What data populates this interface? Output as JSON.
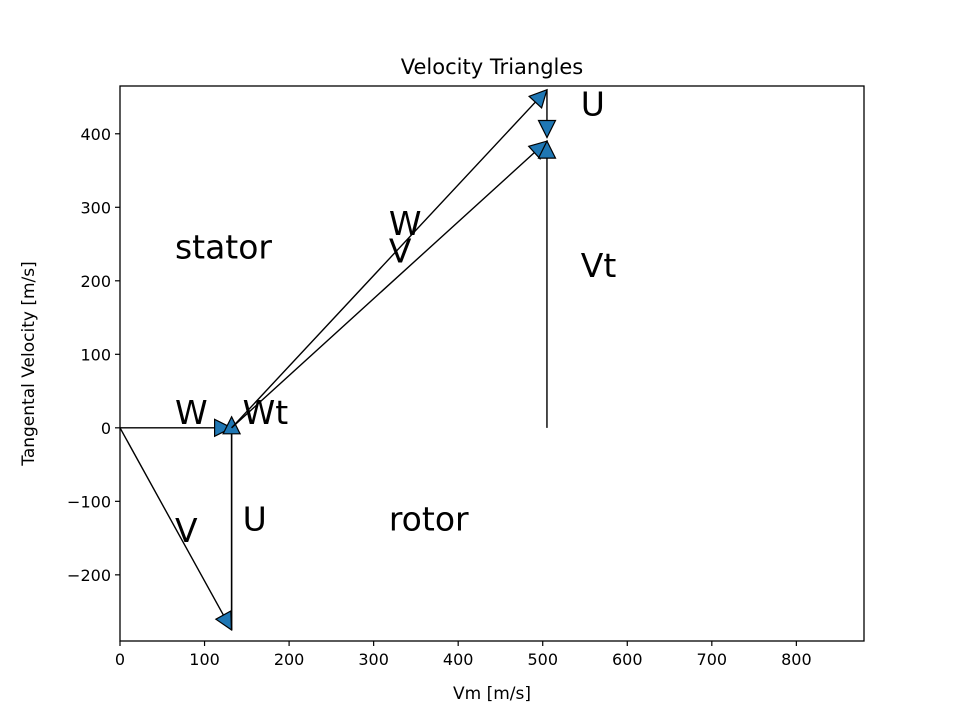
{
  "chart_data": {
    "type": "line",
    "title": "Velocity Triangles",
    "xlabel": "Vm [m/s]",
    "ylabel": "Tangental Velocity [m/s]",
    "xlim": [
      0,
      880
    ],
    "ylim": [
      -290,
      465
    ],
    "xticks": [
      0,
      100,
      200,
      300,
      400,
      500,
      600,
      700,
      800
    ],
    "xtick_labels": [
      "0",
      "100",
      "200",
      "300",
      "400",
      "500",
      "600",
      "700",
      "800"
    ],
    "yticks": [
      -200,
      -100,
      0,
      100,
      200,
      300,
      400
    ],
    "ytick_labels": [
      "−200",
      "−100",
      "0",
      "100",
      "200",
      "300",
      "400"
    ],
    "grid": false,
    "series": [
      {
        "name": "W",
        "x": [
          0,
          132
        ],
        "y": [
          0,
          0
        ],
        "arrow_head": true
      },
      {
        "name": "V",
        "x": [
          0,
          132
        ],
        "y": [
          0,
          -275
        ],
        "arrow_head": true
      },
      {
        "name": "U",
        "x": [
          132,
          132
        ],
        "y": [
          0,
          -275
        ],
        "arrow_head": false
      },
      {
        "name": "Wt",
        "x": [
          132,
          132
        ],
        "y": [
          -275,
          15
        ],
        "arrow_head": true
      },
      {
        "name": "W",
        "x": [
          132,
          505
        ],
        "y": [
          0,
          460
        ],
        "arrow_head": true
      },
      {
        "name": "V",
        "x": [
          132,
          505
        ],
        "y": [
          0,
          390
        ],
        "arrow_head": true
      },
      {
        "name": "U",
        "x": [
          505,
          505
        ],
        "y": [
          460,
          395
        ],
        "arrow_head": true
      },
      {
        "name": "Vt",
        "x": [
          505,
          505
        ],
        "y": [
          0,
          390
        ],
        "arrow_head": true
      }
    ],
    "annotations": [
      {
        "text": "stator",
        "x": 65,
        "y": 230
      },
      {
        "text": "W",
        "x": 65,
        "y": 5
      },
      {
        "text": "Wt",
        "x": 145,
        "y": 5
      },
      {
        "text": "V",
        "x": 65,
        "y": -155
      },
      {
        "text": "U",
        "x": 145,
        "y": -140
      },
      {
        "text": "rotor",
        "x": 318,
        "y": -140
      },
      {
        "text": "W",
        "x": 318,
        "y": 262
      },
      {
        "text": "V",
        "x": 318,
        "y": 225
      },
      {
        "text": "Vt",
        "x": 545,
        "y": 205
      },
      {
        "text": "U",
        "x": 545,
        "y": 425
      }
    ],
    "colors": {
      "line": "#000000",
      "arrow_fill": "#1f77b4",
      "arrow_edge": "#000000",
      "frame": "#000000"
    }
  }
}
